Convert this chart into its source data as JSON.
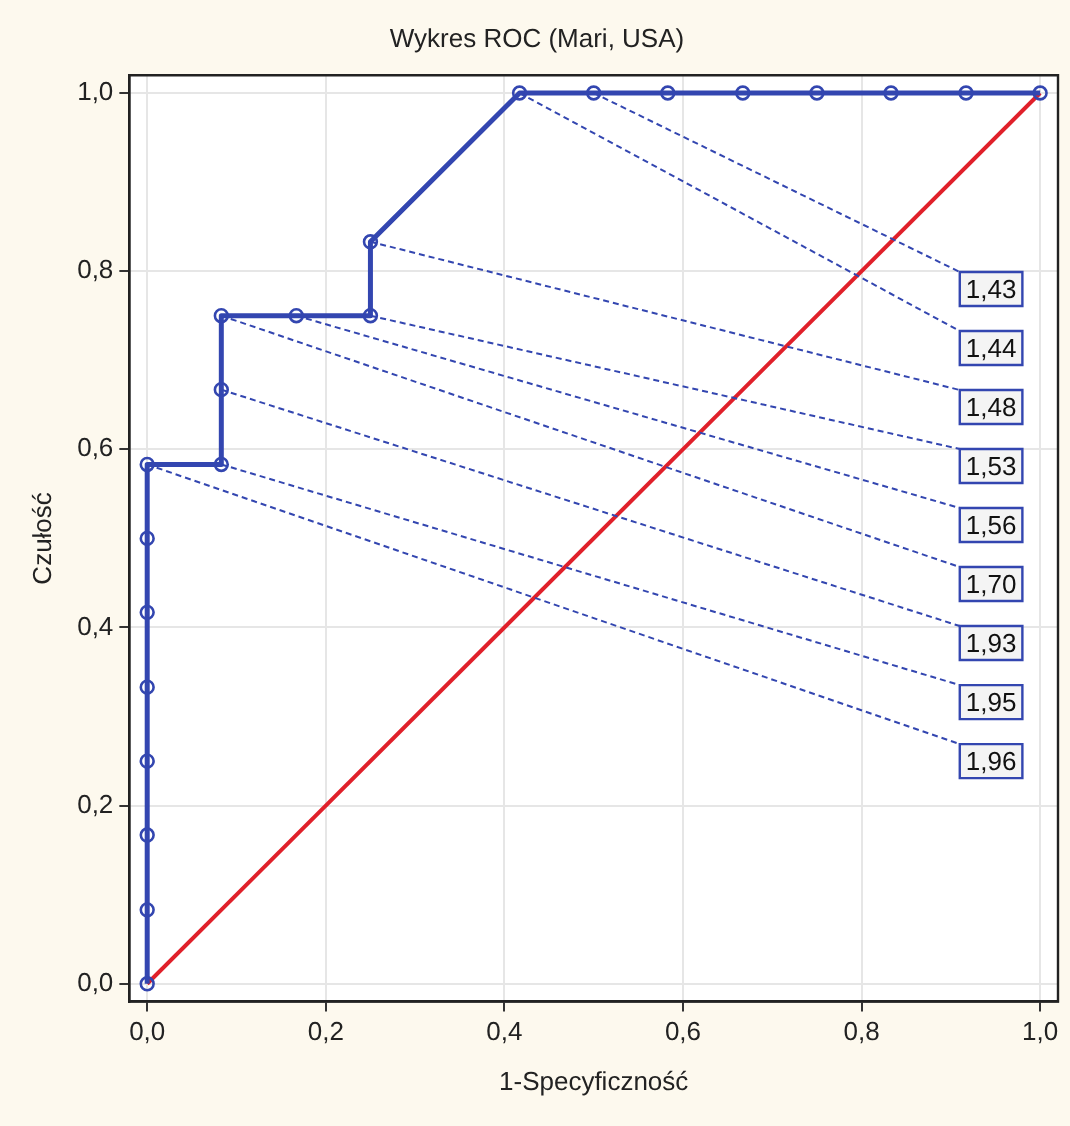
{
  "chart_data": {
    "type": "line",
    "title": "Wykres ROC (Mari, USA)",
    "xlabel": "1-Specyficzność",
    "ylabel": "Czułość",
    "xlim": [
      -0.02,
      1.02
    ],
    "ylim": [
      -0.02,
      1.02
    ],
    "xticks": [
      {
        "value": 0,
        "label": "0,0"
      },
      {
        "value": 0.2,
        "label": "0,2"
      },
      {
        "value": 0.4,
        "label": "0,4"
      },
      {
        "value": 0.6,
        "label": "0,6"
      },
      {
        "value": 0.8,
        "label": "0,8"
      },
      {
        "value": 1,
        "label": "1,0"
      }
    ],
    "yticks": [
      {
        "value": 0,
        "label": "0,0"
      },
      {
        "value": 0.2,
        "label": "0,2"
      },
      {
        "value": 0.4,
        "label": "0,4"
      },
      {
        "value": 0.6,
        "label": "0,6"
      },
      {
        "value": 0.8,
        "label": "0,8"
      },
      {
        "value": 1,
        "label": "1,0"
      }
    ],
    "grid": true,
    "legend": false,
    "series": [
      {
        "color": "#3346b0",
        "marker": "circle",
        "x": [
          0,
          0,
          0,
          0,
          0,
          0,
          0,
          0,
          0.083,
          0.083,
          0.083,
          0.167,
          0.25,
          0.25,
          0.417,
          0.5,
          0.583,
          0.667,
          0.75,
          0.833,
          0.917,
          1
        ],
        "values": [
          0,
          0.083,
          0.167,
          0.25,
          0.333,
          0.417,
          0.5,
          0.583,
          0.583,
          0.667,
          0.75,
          0.75,
          0.75,
          0.833,
          1,
          1,
          1,
          1,
          1,
          1,
          1,
          1
        ]
      },
      {
        "color": "#e0202a",
        "marker": "none",
        "x": [
          0,
          1
        ],
        "values": [
          0,
          1
        ]
      }
    ],
    "annotations": [
      {
        "text": "1,43",
        "x": 0.5,
        "y": 1
      },
      {
        "text": "1,44",
        "x": 0.417,
        "y": 1
      },
      {
        "text": "1,48",
        "x": 0.25,
        "y": 0.833
      },
      {
        "text": "1,53",
        "x": 0.25,
        "y": 0.75
      },
      {
        "text": "1,56",
        "x": 0.167,
        "y": 0.75
      },
      {
        "text": "1,70",
        "x": 0.083,
        "y": 0.75
      },
      {
        "text": "1,93",
        "x": 0.083,
        "y": 0.667
      },
      {
        "text": "1,95",
        "x": 0.083,
        "y": 0.583
      },
      {
        "text": "1,96",
        "x": 0,
        "y": 0.583
      }
    ]
  }
}
